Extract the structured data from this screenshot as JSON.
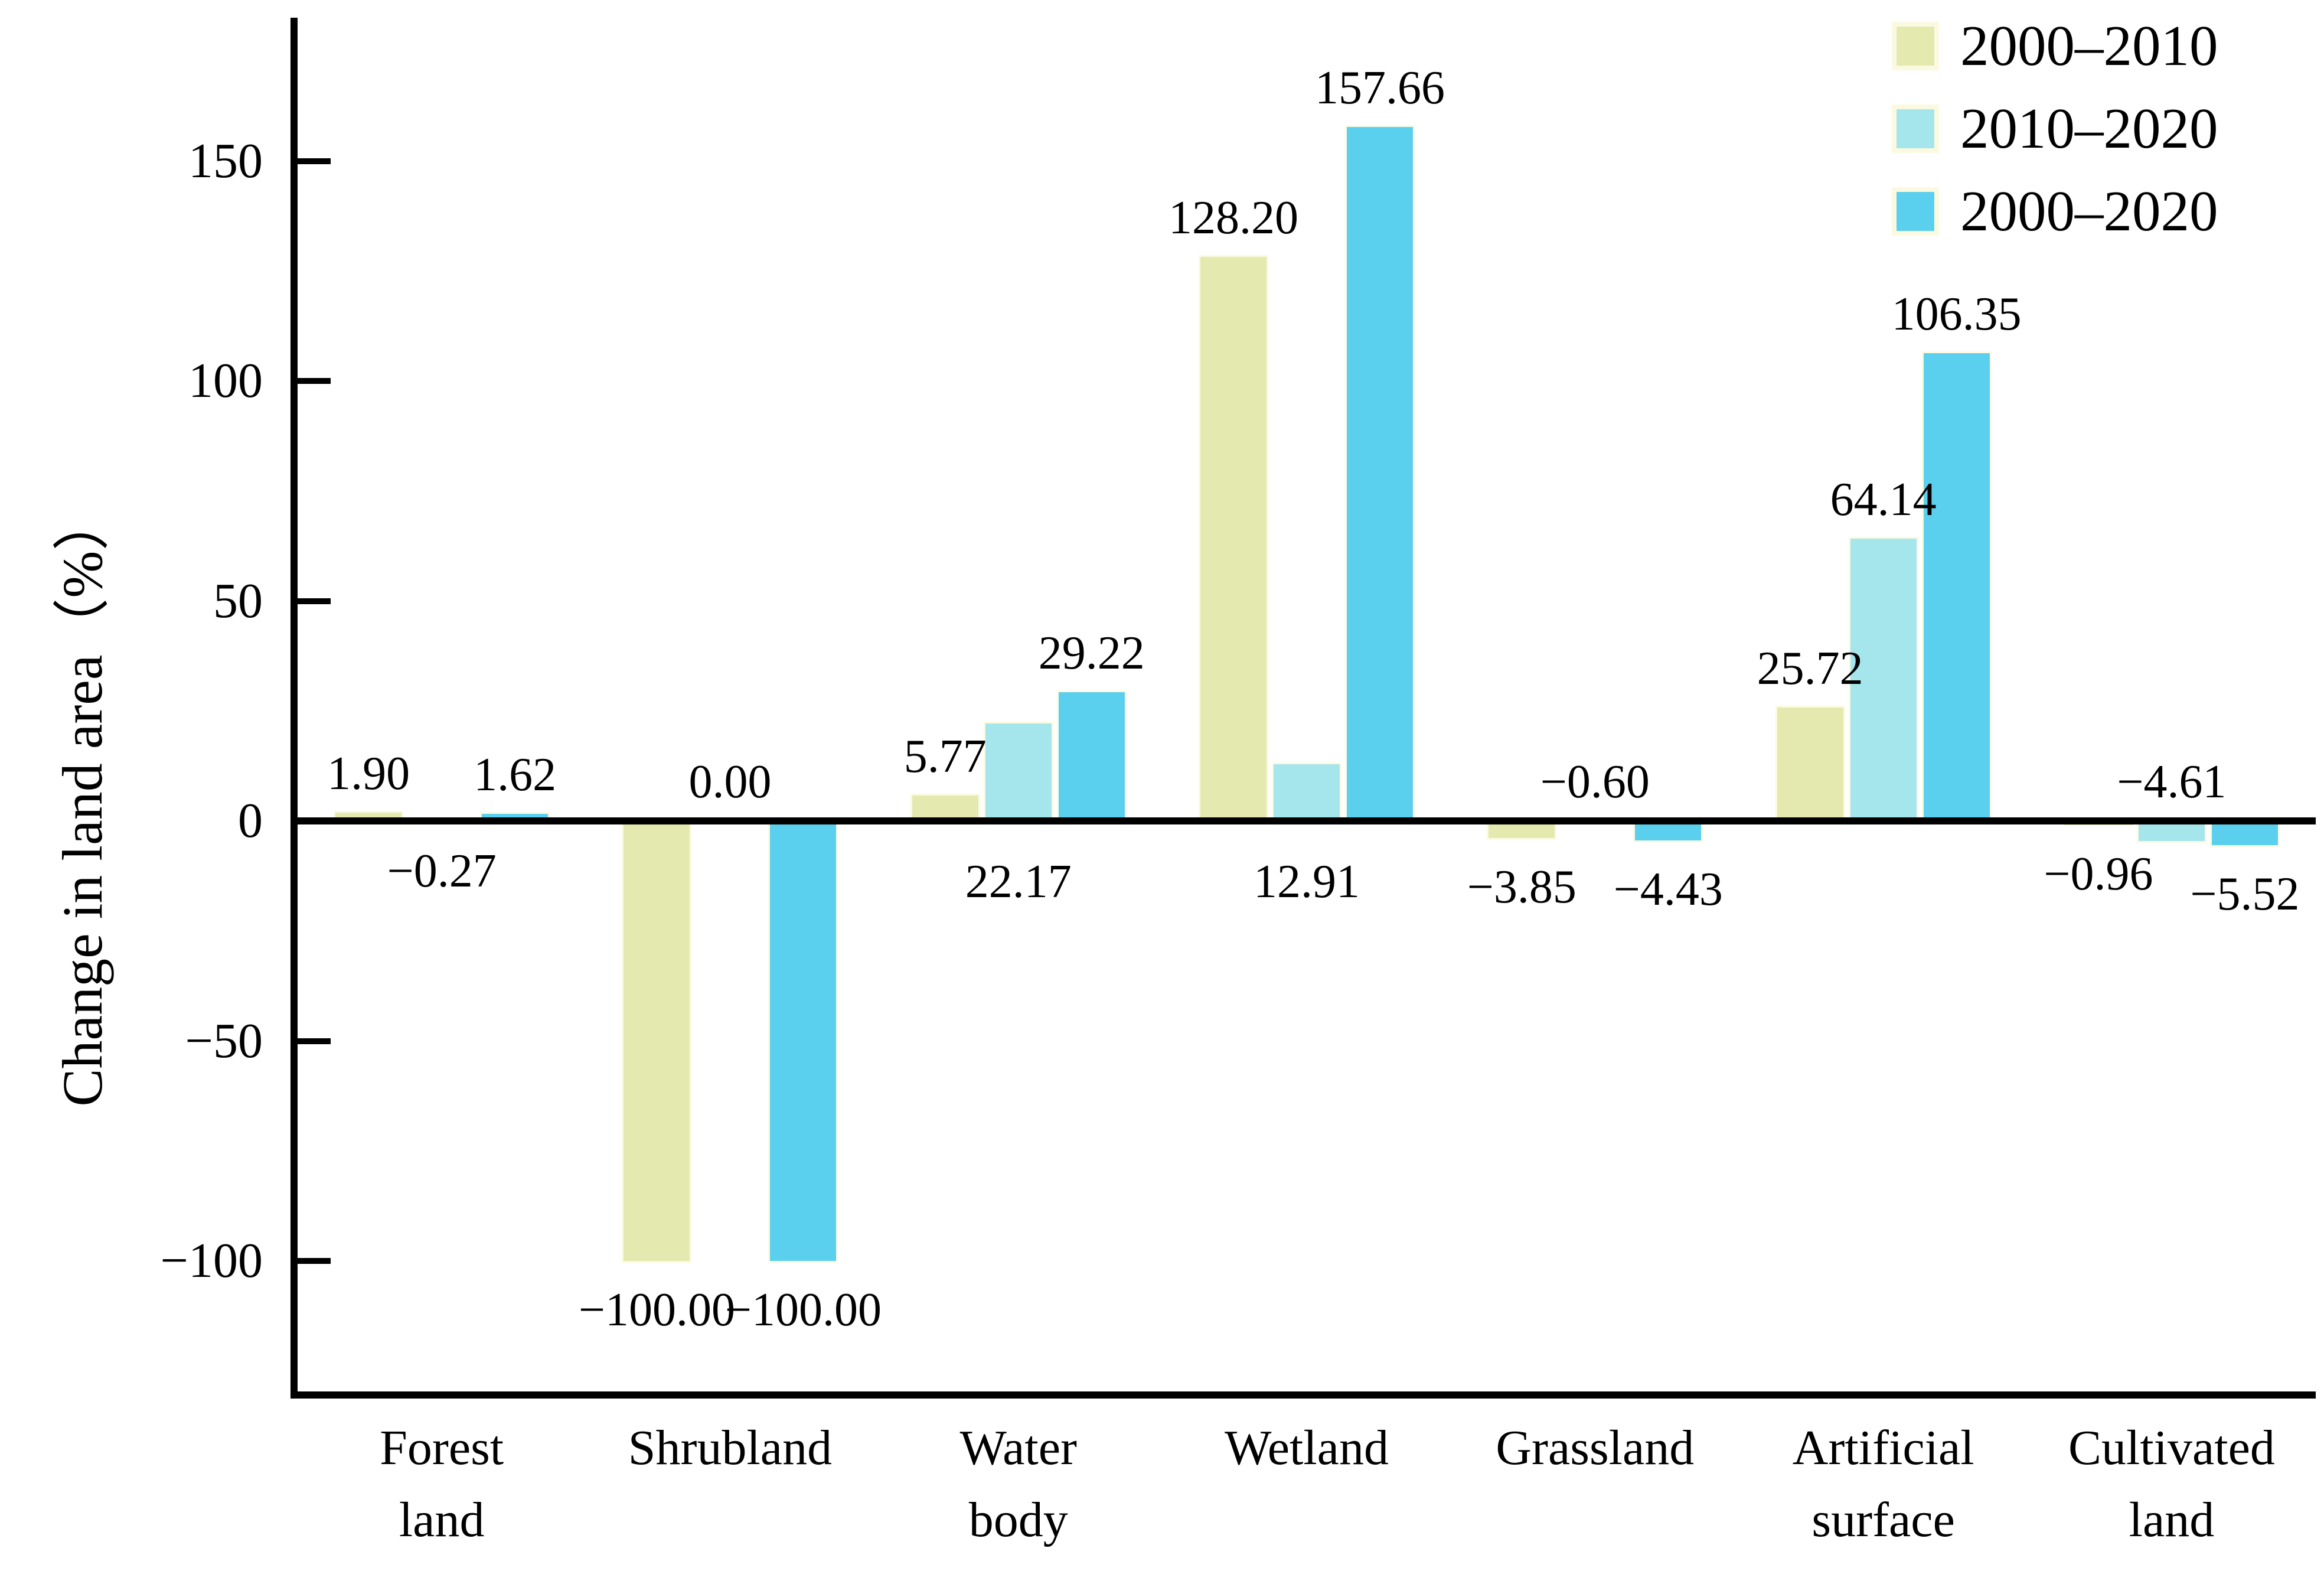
{
  "chart_data": {
    "type": "bar",
    "title": "",
    "ylabel": "Change in land area（%）",
    "xlabel": "",
    "grid": false,
    "legend_position": "top-right",
    "background_color": "#ffffff",
    "axis_color": "#000000",
    "bar_edge_color": "#fbfae1",
    "ylim": [
      -135,
      190
    ],
    "y_ticks": [
      {
        "value": 150,
        "label": "150"
      },
      {
        "value": 100,
        "label": "100"
      },
      {
        "value": 50,
        "label": "50"
      },
      {
        "value": 0,
        "label": "0"
      },
      {
        "value": -50,
        "label": "−50"
      },
      {
        "value": -100,
        "label": "−100"
      }
    ],
    "categories": [
      {
        "lines": [
          "Forest",
          "land"
        ]
      },
      {
        "lines": [
          "Shrubland"
        ]
      },
      {
        "lines": [
          "Water",
          "body"
        ]
      },
      {
        "lines": [
          "Wetland"
        ]
      },
      {
        "lines": [
          "Grassland"
        ]
      },
      {
        "lines": [
          "Artificial",
          "surface"
        ]
      },
      {
        "lines": [
          "Cultivated",
          "land"
        ]
      }
    ],
    "series": [
      {
        "name": "2000–2010",
        "color": "#e4eaaf",
        "values": [
          1.9,
          -100.0,
          5.77,
          128.2,
          -3.85,
          25.72,
          -0.96
        ],
        "labels": [
          "1.90",
          "−100.00",
          "5.77",
          "128.20",
          "−3.85",
          "25.72",
          "−0.96"
        ],
        "label_side": [
          "above",
          "below",
          "above",
          "above",
          "below",
          "above",
          "below"
        ]
      },
      {
        "name": "2010–2020",
        "color": "#a5e6ed",
        "values": [
          -0.27,
          0.0,
          22.17,
          12.91,
          -0.6,
          64.14,
          -4.61
        ],
        "labels": [
          "−0.27",
          "0.00",
          "22.17",
          "12.91",
          "−0.60",
          "64.14",
          "−4.61"
        ],
        "label_side": [
          "below",
          "above",
          "below",
          "below",
          "above",
          "above",
          "above"
        ]
      },
      {
        "name": "2000–2020",
        "color": "#5bd0ee",
        "values": [
          1.62,
          -100.0,
          29.22,
          157.66,
          -4.43,
          106.35,
          -5.52
        ],
        "labels": [
          "1.62",
          "−100.00",
          "29.22",
          "157.66",
          "−4.43",
          "106.35",
          "−5.52"
        ],
        "label_side": [
          "above",
          "below",
          "above",
          "above",
          "below",
          "above",
          "below"
        ]
      }
    ]
  }
}
